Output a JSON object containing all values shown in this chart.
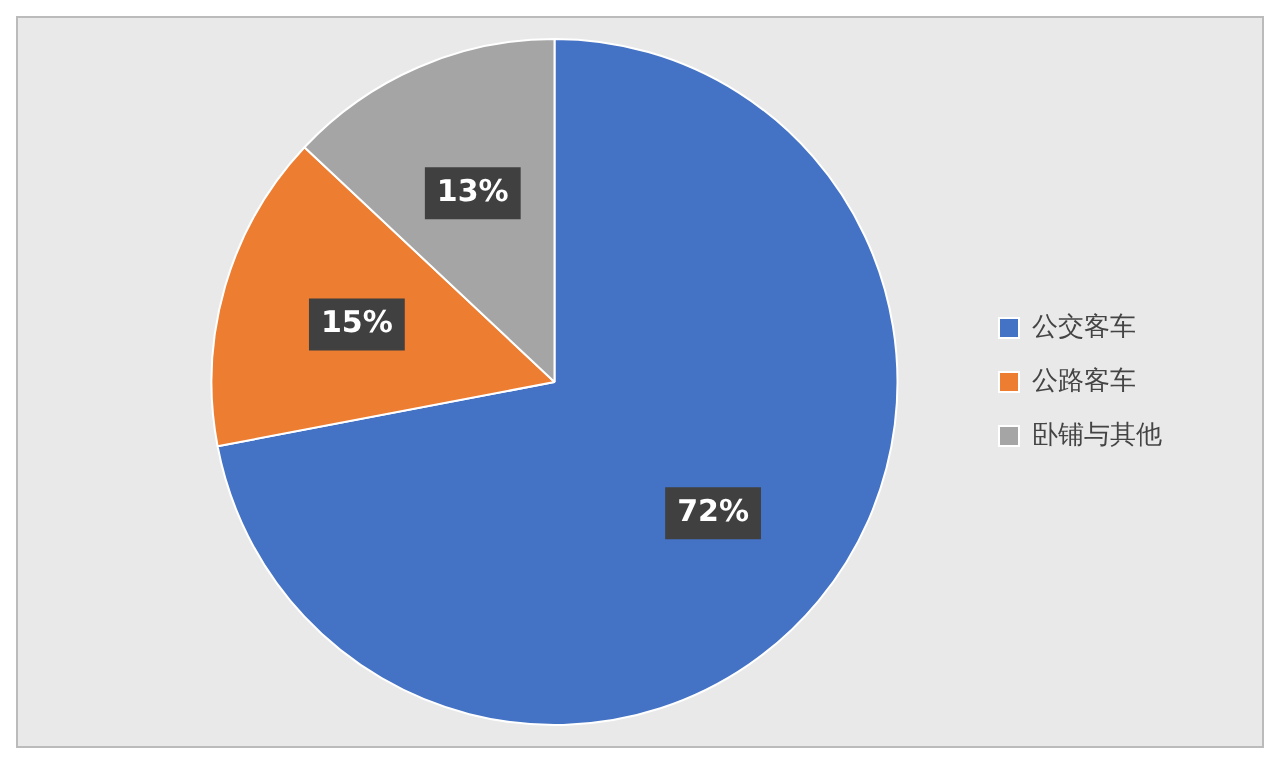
{
  "chart_data": {
    "type": "pie",
    "categories": [
      "公交客车",
      "公路客车",
      "卧铺与其他"
    ],
    "values": [
      72,
      15,
      13
    ],
    "colors": [
      "#4472c4",
      "#ed7d31",
      "#a5a5a5"
    ],
    "value_labels": [
      "72%",
      "15%",
      "13%"
    ],
    "legend": "right"
  }
}
